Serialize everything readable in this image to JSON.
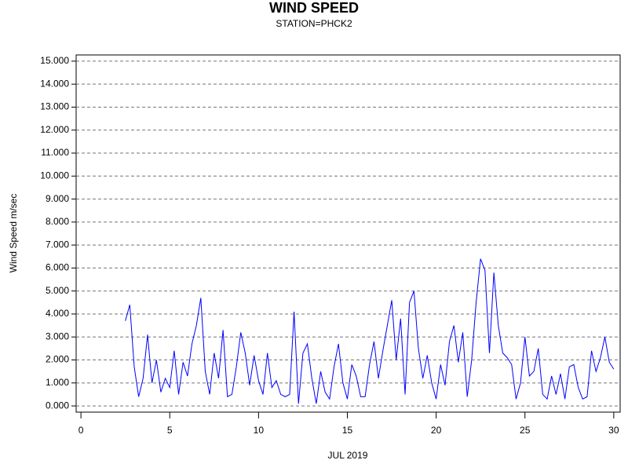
{
  "chart_data": {
    "type": "line",
    "title": "WIND SPEED",
    "subtitle": "STATION=PHCK2",
    "ylabel": "Wind Speed m/sec",
    "xlabel": "JUL 2019",
    "color": "#0000ff",
    "grid": true,
    "xlim": [
      -0.27,
      30.36
    ],
    "ylim": [
      -0.27,
      15.27
    ],
    "xticks": [
      0,
      5,
      10,
      15,
      20,
      25,
      30
    ],
    "yticks": [
      {
        "value": 0,
        "label": "0.000"
      },
      {
        "value": 1,
        "label": "1.000"
      },
      {
        "value": 2,
        "label": "2.000"
      },
      {
        "value": 3,
        "label": "3.000"
      },
      {
        "value": 4,
        "label": "4.000"
      },
      {
        "value": 5,
        "label": "5.000"
      },
      {
        "value": 6,
        "label": "6.000"
      },
      {
        "value": 7,
        "label": "7.000"
      },
      {
        "value": 8,
        "label": "8.000"
      },
      {
        "value": 9,
        "label": "9.000"
      },
      {
        "value": 10,
        "label": "10.000"
      },
      {
        "value": 11,
        "label": "11.000"
      },
      {
        "value": 12,
        "label": "12.000"
      },
      {
        "value": 13,
        "label": "13.000"
      },
      {
        "value": 14,
        "label": "14.000"
      },
      {
        "value": 15,
        "label": "15.000"
      }
    ],
    "x": [
      2.5,
      2.75,
      3,
      3.25,
      3.5,
      3.75,
      4,
      4.25,
      4.5,
      4.75,
      5,
      5.25,
      5.5,
      5.75,
      6,
      6.25,
      6.5,
      6.75,
      7,
      7.25,
      7.5,
      7.75,
      8,
      8.25,
      8.5,
      8.75,
      9,
      9.25,
      9.5,
      9.75,
      10,
      10.25,
      10.5,
      10.75,
      11,
      11.25,
      11.5,
      11.75,
      12,
      12.25,
      12.5,
      12.75,
      13,
      13.25,
      13.5,
      13.75,
      14,
      14.25,
      14.5,
      14.75,
      15,
      15.25,
      15.5,
      15.75,
      16,
      16.25,
      16.5,
      16.75,
      17,
      17.25,
      17.5,
      17.75,
      18,
      18.25,
      18.5,
      18.75,
      19,
      19.25,
      19.5,
      19.75,
      20,
      20.25,
      20.5,
      20.75,
      21,
      21.25,
      21.5,
      21.75,
      22,
      22.25,
      22.5,
      22.75,
      23,
      23.25,
      23.5,
      23.75,
      24,
      24.25,
      24.5,
      24.75,
      25,
      25.25,
      25.5,
      25.75,
      26,
      26.25,
      26.5,
      26.75,
      27,
      27.25,
      27.5,
      27.75,
      28,
      28.25,
      28.5,
      28.75,
      29,
      29.25,
      29.5,
      29.75,
      30
    ],
    "values": [
      3.7,
      4.4,
      1.7,
      0.4,
      1.2,
      3.1,
      1.0,
      2.0,
      0.6,
      1.2,
      0.8,
      2.4,
      0.5,
      1.9,
      1.3,
      2.7,
      3.5,
      4.7,
      1.5,
      0.5,
      2.3,
      1.2,
      3.3,
      0.4,
      0.5,
      1.7,
      3.2,
      2.3,
      0.9,
      2.2,
      1.1,
      0.5,
      2.3,
      0.8,
      1.1,
      0.5,
      0.4,
      0.5,
      4.1,
      0.1,
      2.3,
      2.7,
      1.2,
      0.1,
      1.5,
      0.6,
      0.3,
      1.7,
      2.7,
      1.0,
      0.3,
      1.8,
      1.3,
      0.4,
      0.4,
      1.8,
      2.8,
      1.2,
      2.4,
      3.5,
      4.6,
      2.0,
      3.8,
      0.5,
      4.5,
      5.0,
      2.5,
      1.2,
      2.2,
      1.0,
      0.3,
      1.8,
      0.9,
      2.8,
      3.5,
      1.9,
      3.2,
      0.4,
      2.0,
      4.5,
      6.4,
      5.9,
      2.3,
      5.8,
      3.5,
      2.3,
      2.1,
      1.8,
      0.3,
      1.0,
      3.0,
      1.3,
      1.5,
      2.5,
      0.5,
      0.3,
      1.3,
      0.5,
      1.4,
      0.3,
      1.7,
      1.8,
      0.8,
      0.3,
      0.4,
      2.4,
      1.5,
      2.1,
      3.0,
      1.9,
      1.6
    ]
  }
}
